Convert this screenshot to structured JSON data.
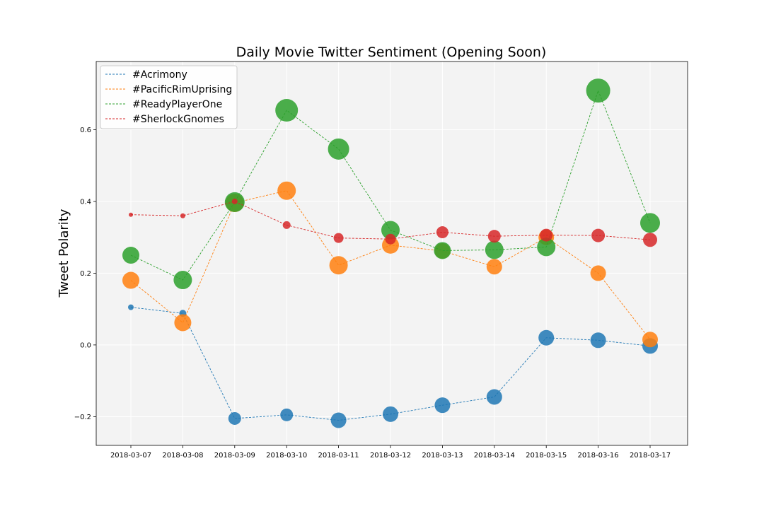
{
  "chart_data": {
    "type": "scatter",
    "title": "Daily Movie Twitter Sentiment (Opening Soon)",
    "xlabel": "",
    "ylabel": "Tweet Polarity",
    "categories": [
      "2018-03-07",
      "2018-03-08",
      "2018-03-09",
      "2018-03-10",
      "2018-03-11",
      "2018-03-12",
      "2018-03-13",
      "2018-03-14",
      "2018-03-15",
      "2018-03-16",
      "2018-03-17"
    ],
    "ylim": [
      -0.28,
      0.79
    ],
    "yticks": [
      -0.2,
      0.0,
      0.2,
      0.4,
      0.6
    ],
    "ytick_labels": [
      "−0.2",
      "0.0",
      "0.2",
      "0.4",
      "0.6"
    ],
    "grid": true,
    "legend_position": "top-left",
    "line_style": "dashed line connecting points; marker size reflects volume",
    "series": [
      {
        "name": "#Acrimony",
        "color": "#1f77b4",
        "values": [
          0.105,
          0.088,
          -0.205,
          -0.195,
          -0.21,
          -0.193,
          -0.168,
          -0.145,
          0.02,
          0.013,
          -0.003
        ],
        "sizes": [
          4,
          5,
          9,
          9,
          11,
          11,
          11,
          11,
          11,
          11,
          11
        ]
      },
      {
        "name": "#PacificRimUprising",
        "color": "#ff7f0e",
        "values": [
          0.18,
          0.062,
          0.396,
          0.43,
          0.222,
          0.278,
          0.262,
          0.218,
          0.3,
          0.2,
          0.015
        ],
        "sizes": [
          12,
          12,
          13,
          13,
          13,
          12,
          11,
          11,
          11,
          11,
          11
        ]
      },
      {
        "name": "#ReadyPlayerOne",
        "color": "#2ca02c",
        "values": [
          0.25,
          0.181,
          0.398,
          0.654,
          0.546,
          0.32,
          0.263,
          0.265,
          0.273,
          0.709,
          0.34
        ],
        "sizes": [
          12,
          13,
          14,
          16,
          15,
          13,
          12,
          13,
          13,
          17,
          14
        ]
      },
      {
        "name": "#SherlockGnomes",
        "color": "#d62728",
        "values": [
          0.363,
          0.36,
          0.4,
          0.334,
          0.298,
          0.295,
          0.314,
          0.303,
          0.306,
          0.305,
          0.293
        ],
        "sizes": [
          3,
          3.5,
          4,
          5.5,
          7,
          7.5,
          8.5,
          9,
          9,
          9.5,
          10
        ]
      }
    ]
  }
}
